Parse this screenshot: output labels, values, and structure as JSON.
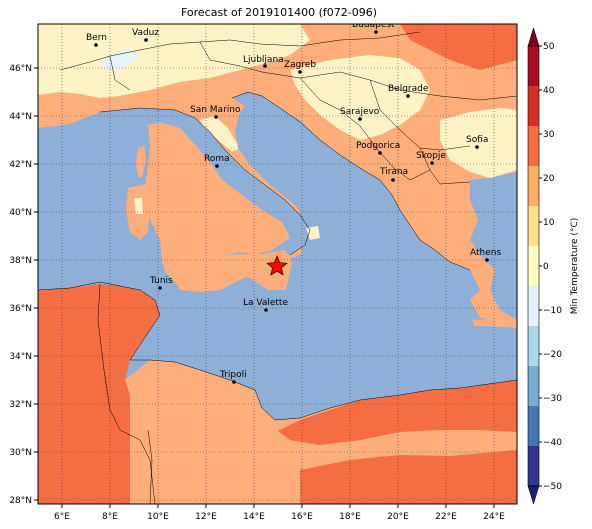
{
  "title": "Forecast of 2019101400 (f072-096)",
  "colorbar": {
    "label": "Min Temperature (°C)",
    "ticks": [
      "50",
      "40",
      "30",
      "20",
      "10",
      "0",
      "−10",
      "−20",
      "−30",
      "−40",
      "−50"
    ],
    "colors": [
      "#7a0021",
      "#a8101f",
      "#d73027",
      "#f46d43",
      "#fdae61",
      "#fee090",
      "#ffffbf",
      "#e0f3f8",
      "#abd9e9",
      "#74add1",
      "#4575b4",
      "#313695",
      "#1d1d7a"
    ]
  },
  "axes": {
    "x_ticks": [
      "6°E",
      "8°E",
      "10°E",
      "12°E",
      "14°E",
      "16°E",
      "18°E",
      "20°E",
      "22°E",
      "24°E"
    ],
    "y_ticks": [
      "46°N",
      "44°N",
      "42°N",
      "40°N",
      "38°N",
      "36°N",
      "34°N",
      "32°N",
      "30°N",
      "28°N"
    ]
  },
  "cities": [
    {
      "name": "Bern"
    },
    {
      "name": "Vaduz"
    },
    {
      "name": "Budapest"
    },
    {
      "name": "Ljubljana"
    },
    {
      "name": "Zagreb"
    },
    {
      "name": "Belgrade"
    },
    {
      "name": "San Marino"
    },
    {
      "name": "Sarajevo"
    },
    {
      "name": "Sofia"
    },
    {
      "name": "Roma"
    },
    {
      "name": "Podgorica"
    },
    {
      "name": "Skopje"
    },
    {
      "name": "Tirana"
    },
    {
      "name": "Athens"
    },
    {
      "name": "Tunis"
    },
    {
      "name": "La Valette"
    },
    {
      "name": "Tripoli"
    }
  ],
  "marker": {
    "type": "star",
    "color": "#ff0000"
  },
  "palette": {
    "sea": "#8eb0d8",
    "warm": "#fdae7a",
    "mild": "#fff3c6",
    "hot": "#f46d43",
    "cool": "#e8f4f8"
  }
}
